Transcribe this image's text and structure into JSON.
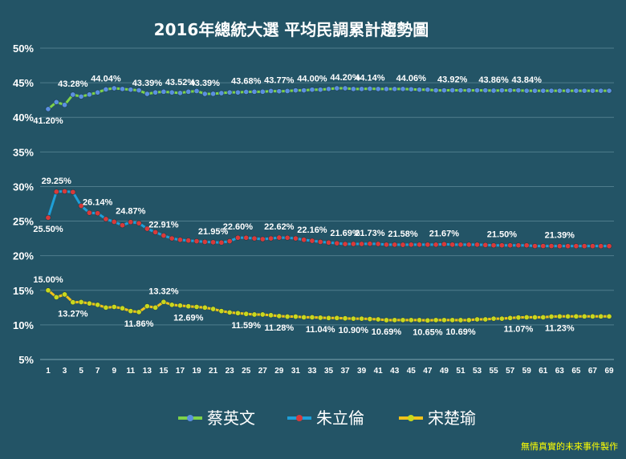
{
  "title": "2016年總統大選 平均民調累計趨勢圖",
  "credit": "無情真實的未來事件製作",
  "chart_data": {
    "type": "line",
    "title": "2016年總統大選 平均民調累計趨勢圖",
    "xlabel": "",
    "ylabel": "",
    "xlim": [
      1,
      69
    ],
    "ylim": [
      5,
      50
    ],
    "ytick_step": 5,
    "yticks": [
      "5%",
      "10%",
      "15%",
      "20%",
      "25%",
      "30%",
      "35%",
      "40%",
      "45%",
      "50%"
    ],
    "xticks": [
      1,
      3,
      5,
      7,
      9,
      11,
      13,
      15,
      17,
      19,
      21,
      23,
      25,
      27,
      29,
      31,
      33,
      35,
      37,
      39,
      41,
      43,
      45,
      47,
      49,
      51,
      53,
      55,
      57,
      59,
      61,
      63,
      65,
      67,
      69
    ],
    "grid": true,
    "legend_position": "bottom",
    "series": [
      {
        "name": "蔡英文",
        "line_color": "#7ed24a",
        "marker_color": "#5b8fe0",
        "values": [
          41.2,
          42.2,
          41.8,
          43.28,
          43.0,
          43.3,
          43.6,
          44.04,
          44.2,
          44.1,
          44.0,
          43.9,
          43.39,
          43.6,
          43.7,
          43.6,
          43.52,
          43.7,
          43.8,
          43.39,
          43.4,
          43.5,
          43.6,
          43.6,
          43.68,
          43.7,
          43.7,
          43.8,
          43.77,
          43.8,
          43.9,
          43.9,
          44.0,
          44.0,
          44.1,
          44.2,
          44.2,
          44.1,
          44.1,
          44.14,
          44.1,
          44.1,
          44.1,
          44.1,
          44.06,
          44.0,
          44.0,
          43.9,
          43.9,
          43.92,
          43.9,
          43.9,
          43.9,
          43.9,
          43.86,
          43.9,
          43.9,
          43.9,
          43.84,
          43.84,
          43.84,
          43.84,
          43.84,
          43.84,
          43.84,
          43.84,
          43.84,
          43.84,
          43.84
        ],
        "labels": [
          {
            "i": 1,
            "text": "41.20%",
            "pos": "below"
          },
          {
            "i": 4,
            "text": "43.28%",
            "pos": "above"
          },
          {
            "i": 8,
            "text": "44.04%",
            "pos": "above"
          },
          {
            "i": 13,
            "text": "43.39%",
            "pos": "above"
          },
          {
            "i": 17,
            "text": "43.52%",
            "pos": "above"
          },
          {
            "i": 20,
            "text": "43.39%",
            "pos": "above"
          },
          {
            "i": 25,
            "text": "43.68%",
            "pos": "above"
          },
          {
            "i": 29,
            "text": "43.77%",
            "pos": "above"
          },
          {
            "i": 33,
            "text": "44.00%",
            "pos": "above"
          },
          {
            "i": 37,
            "text": "44.20%",
            "pos": "above"
          },
          {
            "i": 40,
            "text": "44.14%",
            "pos": "above"
          },
          {
            "i": 45,
            "text": "44.06%",
            "pos": "above"
          },
          {
            "i": 50,
            "text": "43.92%",
            "pos": "above"
          },
          {
            "i": 55,
            "text": "43.86%",
            "pos": "above"
          },
          {
            "i": 59,
            "text": "43.84%",
            "pos": "above"
          }
        ]
      },
      {
        "name": "朱立倫",
        "line_color": "#1e9fd8",
        "marker_color": "#d83a3a",
        "values": [
          25.5,
          29.25,
          29.3,
          29.2,
          27.2,
          26.2,
          26.14,
          25.3,
          24.9,
          24.4,
          24.87,
          24.7,
          23.9,
          23.4,
          22.91,
          22.5,
          22.3,
          22.2,
          22.1,
          22.0,
          21.95,
          21.9,
          22.1,
          22.6,
          22.6,
          22.5,
          22.4,
          22.5,
          22.62,
          22.6,
          22.5,
          22.3,
          22.16,
          22.0,
          21.9,
          21.8,
          21.69,
          21.7,
          21.7,
          21.73,
          21.7,
          21.6,
          21.6,
          21.58,
          21.6,
          21.6,
          21.6,
          21.6,
          21.67,
          21.6,
          21.6,
          21.6,
          21.6,
          21.55,
          21.5,
          21.5,
          21.5,
          21.5,
          21.5,
          21.4,
          21.4,
          21.4,
          21.39,
          21.39,
          21.39,
          21.39,
          21.39,
          21.39,
          21.39
        ],
        "labels": [
          {
            "i": 1,
            "text": "25.50%",
            "pos": "below"
          },
          {
            "i": 2,
            "text": "29.25%",
            "pos": "above"
          },
          {
            "i": 7,
            "text": "26.14%",
            "pos": "above"
          },
          {
            "i": 11,
            "text": "24.87%",
            "pos": "above"
          },
          {
            "i": 15,
            "text": "22.91%",
            "pos": "above"
          },
          {
            "i": 21,
            "text": "21.95%",
            "pos": "above"
          },
          {
            "i": 24,
            "text": "22.60%",
            "pos": "above"
          },
          {
            "i": 29,
            "text": "22.62%",
            "pos": "above"
          },
          {
            "i": 33,
            "text": "22.16%",
            "pos": "above"
          },
          {
            "i": 37,
            "text": "21.69%",
            "pos": "above"
          },
          {
            "i": 40,
            "text": "21.73%",
            "pos": "above"
          },
          {
            "i": 44,
            "text": "21.58%",
            "pos": "above"
          },
          {
            "i": 49,
            "text": "21.67%",
            "pos": "above"
          },
          {
            "i": 56,
            "text": "21.50%",
            "pos": "above"
          },
          {
            "i": 63,
            "text": "21.39%",
            "pos": "above"
          }
        ]
      },
      {
        "name": "宋楚瑜",
        "line_color": "#f2c21a",
        "marker_color": "#c8d81e",
        "values": [
          15.0,
          14.0,
          14.4,
          13.27,
          13.3,
          13.1,
          12.9,
          12.5,
          12.6,
          12.4,
          12.0,
          11.86,
          12.7,
          12.5,
          13.32,
          12.9,
          12.8,
          12.69,
          12.6,
          12.5,
          12.3,
          12.0,
          11.8,
          11.7,
          11.59,
          11.5,
          11.5,
          11.4,
          11.28,
          11.2,
          11.2,
          11.1,
          11.1,
          11.04,
          11.0,
          11.0,
          10.95,
          10.9,
          10.9,
          10.85,
          10.8,
          10.69,
          10.7,
          10.7,
          10.7,
          10.7,
          10.65,
          10.7,
          10.7,
          10.7,
          10.69,
          10.7,
          10.8,
          10.8,
          10.9,
          10.9,
          11.0,
          11.07,
          11.1,
          11.1,
          11.1,
          11.2,
          11.23,
          11.23,
          11.23,
          11.23,
          11.23,
          11.23,
          11.23
        ],
        "labels": [
          {
            "i": 1,
            "text": "15.00%",
            "pos": "above"
          },
          {
            "i": 4,
            "text": "13.27%",
            "pos": "below"
          },
          {
            "i": 12,
            "text": "11.86%",
            "pos": "below"
          },
          {
            "i": 15,
            "text": "13.32%",
            "pos": "above"
          },
          {
            "i": 18,
            "text": "12.69%",
            "pos": "below"
          },
          {
            "i": 25,
            "text": "11.59%",
            "pos": "below"
          },
          {
            "i": 29,
            "text": "11.28%",
            "pos": "below"
          },
          {
            "i": 34,
            "text": "11.04%",
            "pos": "below"
          },
          {
            "i": 38,
            "text": "10.90%",
            "pos": "below"
          },
          {
            "i": 42,
            "text": "10.69%",
            "pos": "below"
          },
          {
            "i": 47,
            "text": "10.65%",
            "pos": "below"
          },
          {
            "i": 51,
            "text": "10.69%",
            "pos": "below"
          },
          {
            "i": 58,
            "text": "11.07%",
            "pos": "below"
          },
          {
            "i": 63,
            "text": "11.23%",
            "pos": "below"
          }
        ]
      }
    ]
  }
}
